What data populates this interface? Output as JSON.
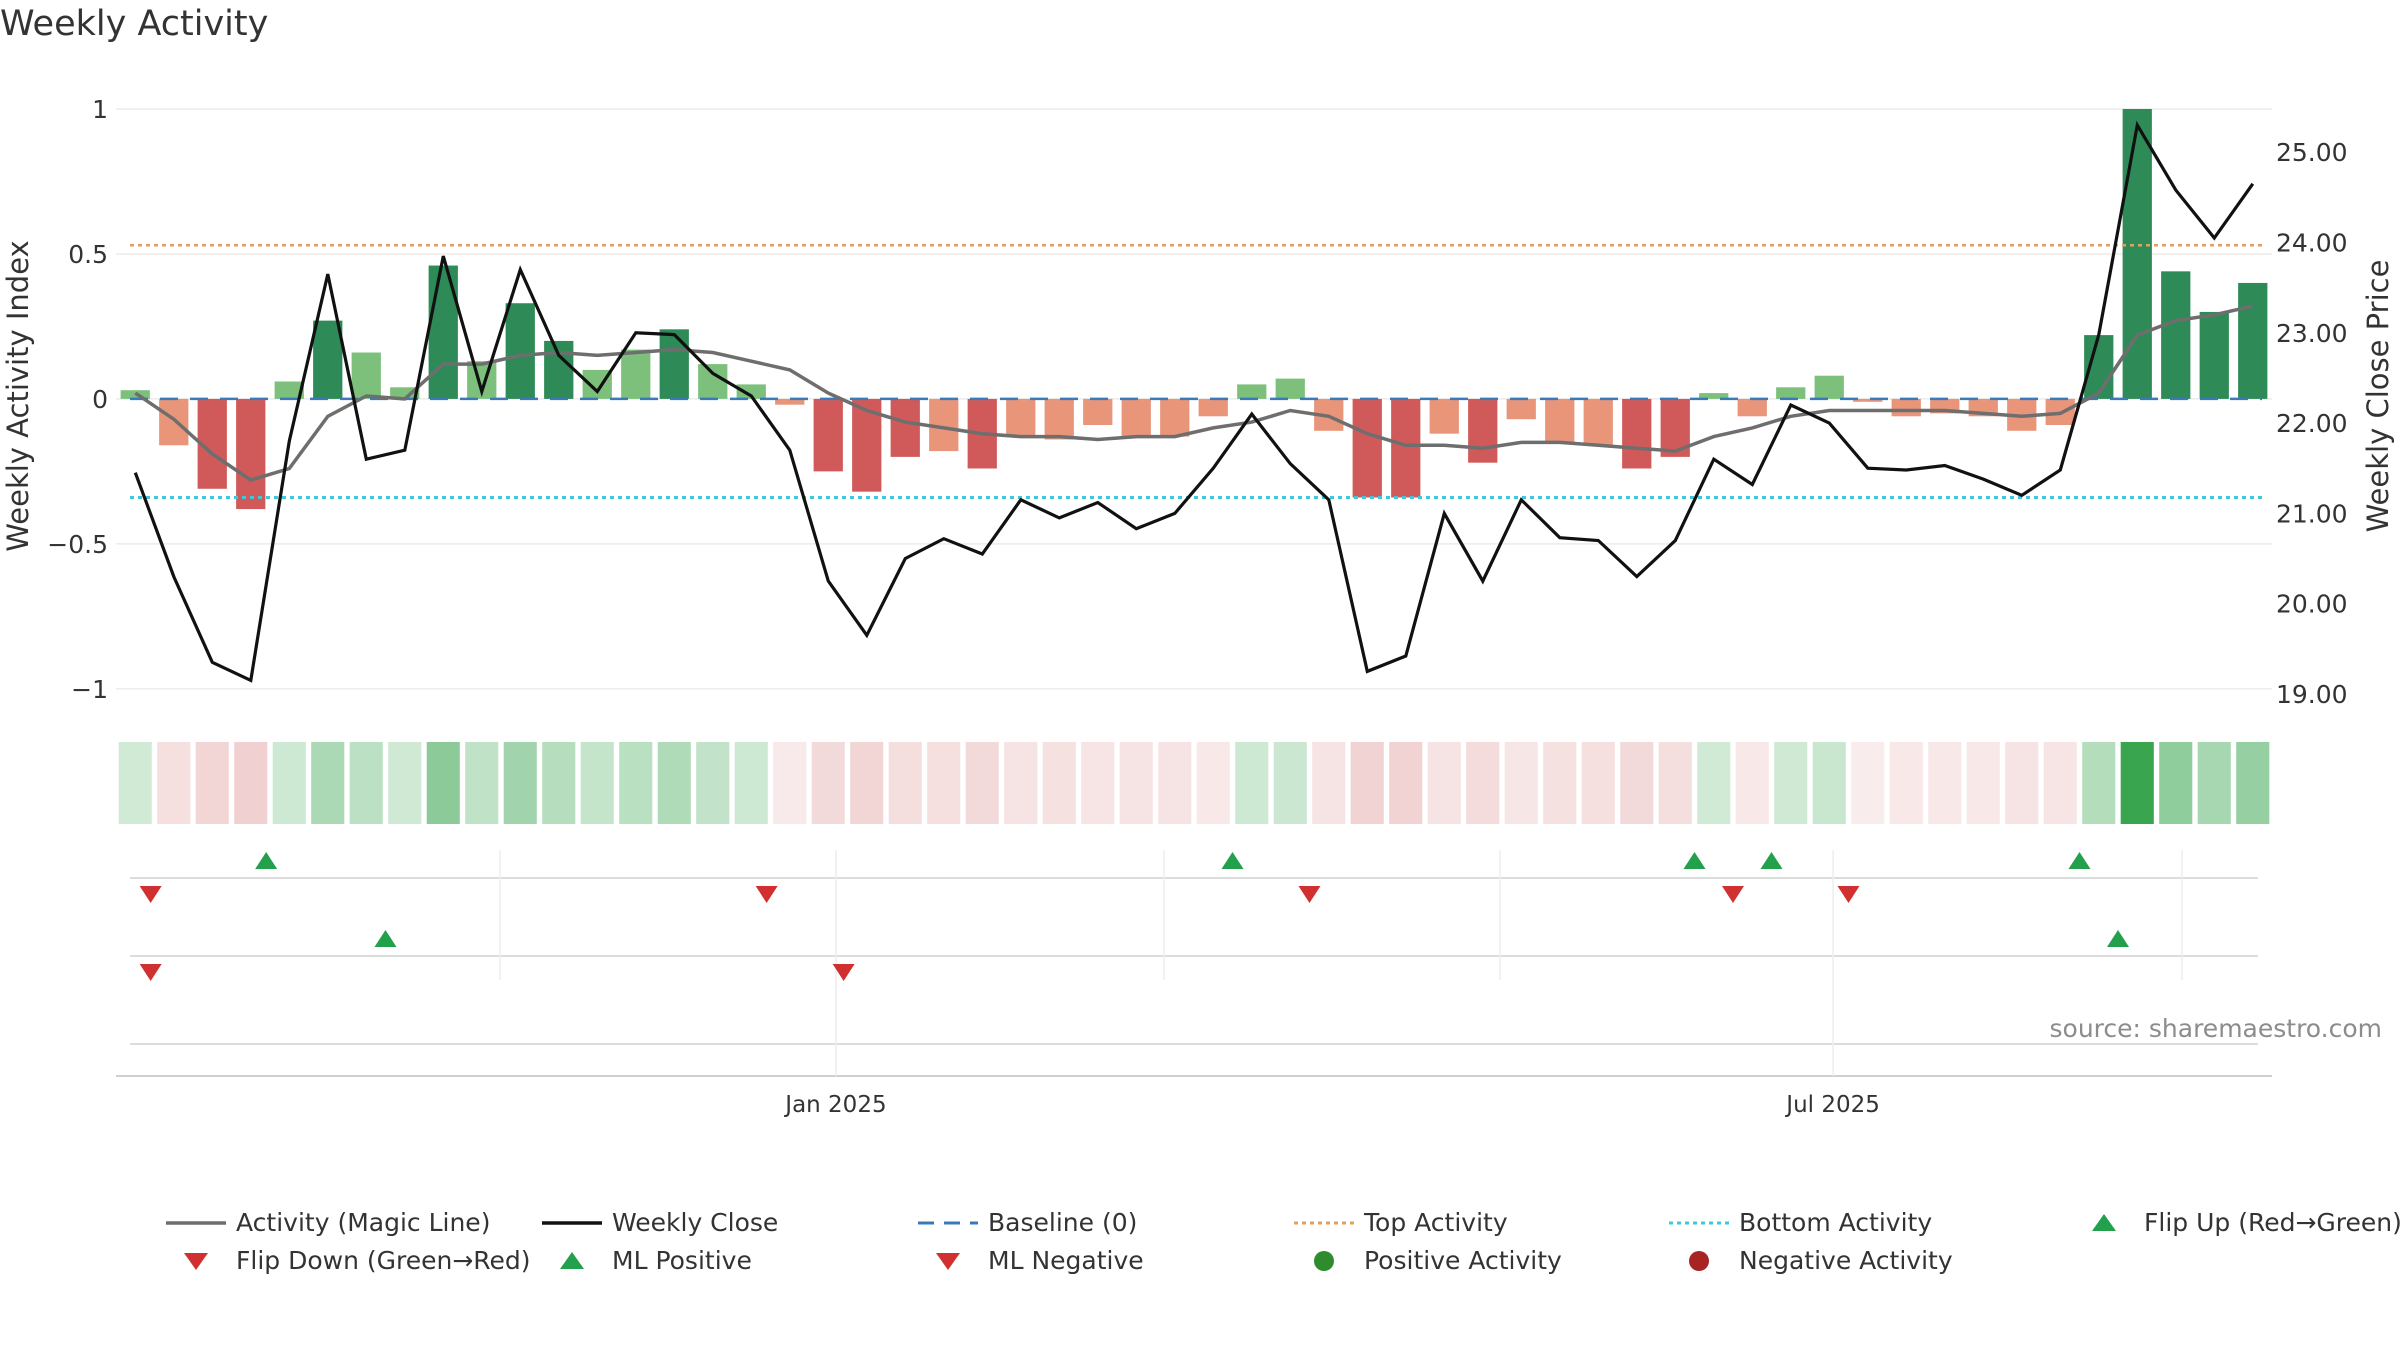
{
  "title": "Weekly Activity",
  "source": "source: sharemaestro.com",
  "colors": {
    "strong_green": "#2e8b57",
    "light_green": "#7cc07c",
    "strong_red": "#d05a5a",
    "light_red": "#e8957a",
    "magic_line": "#6e6e6e",
    "close_line": "#111111",
    "baseline": "#3a7ab8",
    "top_line": "#e0a060",
    "bottom_line": "#3ec8d8",
    "marker_up": "#22a04b",
    "marker_down": "#d03030"
  },
  "chart_data": {
    "type": "bar+line",
    "title": "Weekly Activity",
    "ylabel": "Weekly Activity Index",
    "y2label": "Weekly Close Price",
    "ylim": [
      -1.08,
      1.1
    ],
    "y2lim": [
      18.8,
      25.8
    ],
    "yticks": [
      1,
      0.5,
      0,
      -0.5,
      -1
    ],
    "ytick_labels": [
      "1",
      "0.5",
      "0",
      "−0.5",
      "−1"
    ],
    "y2ticks": [
      25,
      24,
      23,
      22,
      21,
      20,
      19
    ],
    "y2tick_labels": [
      "25.00",
      "24.00",
      "23.00",
      "22.00",
      "21.00",
      "20.00",
      "19.00"
    ],
    "xtick_labels": [
      {
        "label": "Jan 2025",
        "week": 18.7
      },
      {
        "label": "Jul 2025",
        "week": 44.6
      }
    ],
    "weeks": 56,
    "activity": [
      0.03,
      -0.16,
      -0.31,
      -0.38,
      0.06,
      0.27,
      0.16,
      0.04,
      0.46,
      0.13,
      0.33,
      0.2,
      0.1,
      0.17,
      0.24,
      0.12,
      0.05,
      -0.02,
      -0.25,
      -0.32,
      -0.2,
      -0.18,
      -0.24,
      -0.13,
      -0.14,
      -0.09,
      -0.13,
      -0.13,
      -0.06,
      0.05,
      0.07,
      -0.11,
      -0.34,
      -0.34,
      -0.12,
      -0.22,
      -0.07,
      -0.15,
      -0.16,
      -0.24,
      -0.2,
      0.02,
      -0.06,
      0.04,
      0.08,
      -0.01,
      -0.06,
      -0.05,
      -0.06,
      -0.11,
      -0.09,
      0.22,
      1.0,
      0.44,
      0.3,
      0.4
    ],
    "magic_line": [
      0.02,
      -0.07,
      -0.19,
      -0.28,
      -0.24,
      -0.06,
      0.01,
      0.0,
      0.12,
      0.12,
      0.15,
      0.16,
      0.15,
      0.16,
      0.17,
      0.16,
      0.13,
      0.1,
      0.02,
      -0.04,
      -0.08,
      -0.1,
      -0.12,
      -0.13,
      -0.13,
      -0.14,
      -0.13,
      -0.13,
      -0.1,
      -0.08,
      -0.04,
      -0.06,
      -0.12,
      -0.16,
      -0.16,
      -0.17,
      -0.15,
      -0.15,
      -0.16,
      -0.17,
      -0.18,
      -0.13,
      -0.1,
      -0.06,
      -0.04,
      -0.04,
      -0.04,
      -0.04,
      -0.05,
      -0.06,
      -0.05,
      0.02,
      0.22,
      0.27,
      0.29,
      0.32
    ],
    "weekly_close": [
      21.45,
      20.3,
      19.35,
      19.15,
      21.8,
      23.65,
      21.6,
      21.7,
      23.85,
      22.35,
      23.7,
      22.75,
      22.35,
      23.0,
      22.98,
      22.55,
      22.3,
      21.7,
      20.25,
      19.65,
      20.5,
      20.72,
      20.55,
      21.15,
      20.95,
      21.12,
      20.83,
      21.0,
      21.5,
      22.1,
      21.55,
      21.15,
      19.25,
      19.42,
      21.0,
      20.25,
      21.15,
      20.73,
      20.7,
      20.3,
      20.7,
      21.6,
      21.32,
      22.2,
      22.0,
      21.5,
      21.48,
      21.53,
      21.38,
      21.2,
      21.48,
      22.98,
      25.3,
      24.58,
      24.05,
      24.65
    ],
    "baseline": 0,
    "top_activity": 0.53,
    "bottom_activity": -0.34,
    "flip_up_weeks": [
      3.9,
      29.0,
      41.0,
      43.0,
      51.0
    ],
    "flip_down_weeks": [
      0.9,
      16.9,
      31.0,
      42.0,
      45.0
    ],
    "ml_positive_weeks": [
      7.0,
      52.0
    ],
    "ml_negative_weeks": [
      0.9,
      18.9
    ],
    "legend": [
      {
        "label": "Activity (Magic Line)",
        "kind": "line-gray"
      },
      {
        "label": "Weekly Close",
        "kind": "line-black"
      },
      {
        "label": "Baseline (0)",
        "kind": "dash-blue"
      },
      {
        "label": "Top Activity",
        "kind": "dot-orange"
      },
      {
        "label": "Bottom Activity",
        "kind": "dot-cyan"
      },
      {
        "label": "Flip Up (Red→Green)",
        "kind": "tri-up"
      },
      {
        "label": "Flip Down (Green→Red)",
        "kind": "tri-down"
      },
      {
        "label": "ML Positive",
        "kind": "tri-up"
      },
      {
        "label": "ML Negative",
        "kind": "tri-down"
      },
      {
        "label": "Positive Activity",
        "kind": "dot-green"
      },
      {
        "label": "Negative Activity",
        "kind": "dot-red"
      }
    ]
  }
}
